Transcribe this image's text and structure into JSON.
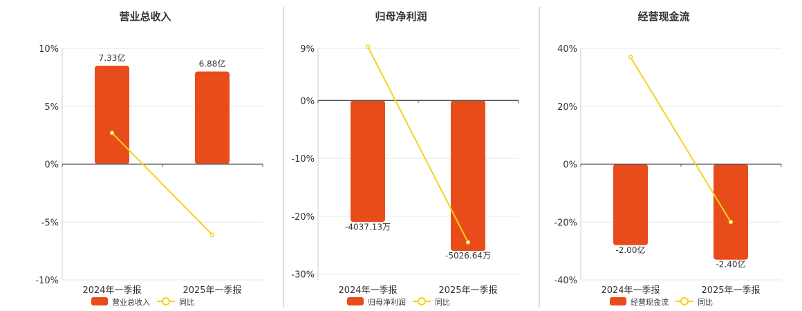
{
  "colors": {
    "bar": "#e84c1b",
    "line": "#f2d31b",
    "axis": "#555555",
    "grid": "#e6e6e6",
    "divider": "#bbbbbb",
    "text": "#333333"
  },
  "chart_data": [
    {
      "type": "bar",
      "title": "营业总收入",
      "categories": [
        "2024年一季报",
        "2025年一季报"
      ],
      "series": [
        {
          "name": "营业总收入",
          "kind": "bar",
          "labels": [
            "7.33亿",
            "6.88亿"
          ]
        },
        {
          "name": "同比",
          "kind": "line",
          "values": [
            2.7,
            -6.1
          ]
        }
      ],
      "ylim": [
        -10,
        10
      ],
      "yticks": [
        10,
        5,
        0,
        -5,
        -10
      ],
      "ytick_labels": [
        "10%",
        "5%",
        "0%",
        "-5%",
        "-10%"
      ],
      "bar_display_values": [
        8.5,
        8.0
      ],
      "grid": true,
      "legend_position": "bottom"
    },
    {
      "type": "bar",
      "title": "归母净利润",
      "categories": [
        "2024年一季报",
        "2025年一季报"
      ],
      "series": [
        {
          "name": "归母净利润",
          "kind": "bar",
          "labels": [
            "-4037.13万",
            "-5026.64万"
          ]
        },
        {
          "name": "同比",
          "kind": "line",
          "values": [
            9.3,
            -24.5
          ]
        }
      ],
      "ylim": [
        -31,
        9
      ],
      "yticks": [
        9,
        0,
        -10,
        -20,
        -30
      ],
      "ytick_labels": [
        "9%",
        "0%",
        "-10%",
        "-20%",
        "-30%"
      ],
      "bar_display_values": [
        -21,
        -26
      ],
      "grid": true,
      "legend_position": "bottom"
    },
    {
      "type": "bar",
      "title": "经营现金流",
      "categories": [
        "2024年一季报",
        "2025年一季报"
      ],
      "series": [
        {
          "name": "经营现金流",
          "kind": "bar",
          "labels": [
            "-2.00亿",
            "-2.40亿"
          ]
        },
        {
          "name": "同比",
          "kind": "line",
          "values": [
            37,
            -20
          ]
        }
      ],
      "ylim": [
        -40,
        40
      ],
      "yticks": [
        40,
        20,
        0,
        -20,
        -40
      ],
      "ytick_labels": [
        "40%",
        "20%",
        "0%",
        "-20%",
        "-40%"
      ],
      "bar_display_values": [
        -28,
        -33
      ],
      "grid": true,
      "legend_position": "bottom"
    }
  ]
}
